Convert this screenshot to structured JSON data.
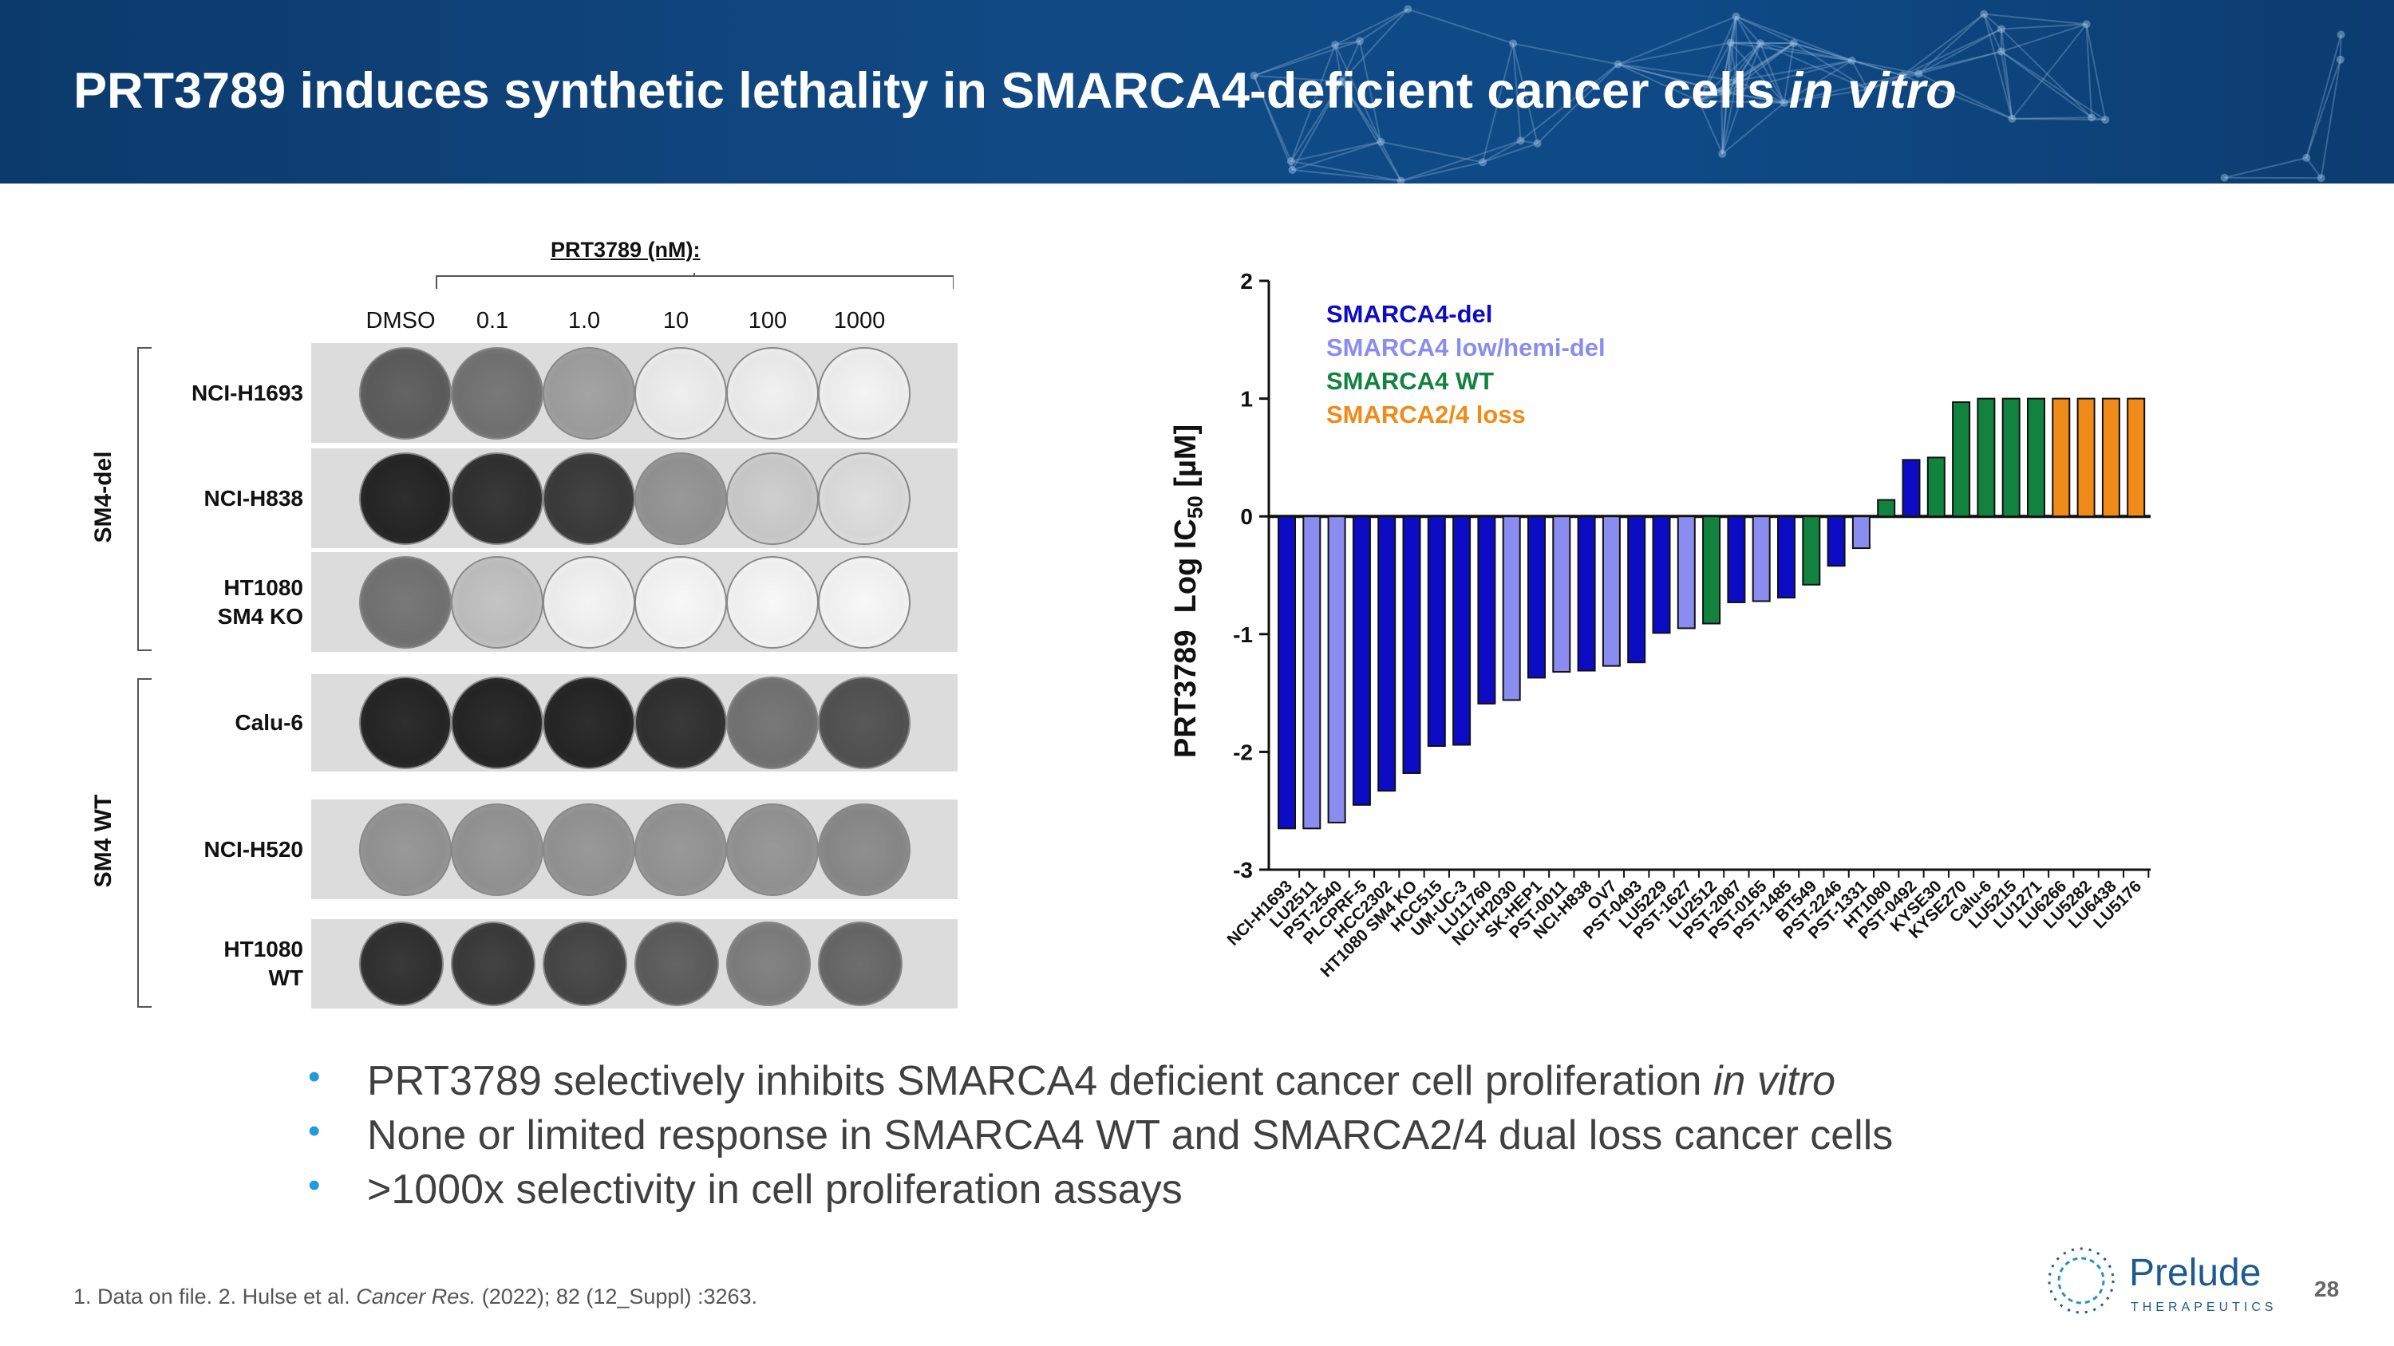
{
  "slide": {
    "title_main": "PRT3789 induces synthetic lethality in SMARCA4-deficient cancer cells ",
    "title_italic": "in vitro",
    "page_number": "28"
  },
  "colony_panel": {
    "treatment_label": "PRT3789 (nM):",
    "doses": [
      "DMSO",
      "0.1",
      "1.0",
      "10",
      "100",
      "1000"
    ],
    "groups": [
      {
        "label": "SM4-del",
        "rows": [
          {
            "line1": "NCI-H1693",
            "line2": "",
            "density": [
              0.7,
              0.6,
              0.4,
              0.05,
              0.04,
              0.03
            ]
          },
          {
            "line1": "NCI-H838",
            "line2": "",
            "density": [
              0.95,
              0.9,
              0.85,
              0.45,
              0.2,
              0.12
            ]
          },
          {
            "line1": "HT1080",
            "line2": "SM4 KO",
            "density": [
              0.6,
              0.25,
              0.03,
              0.01,
              0.01,
              0.01
            ]
          }
        ]
      },
      {
        "label": "SM4 WT",
        "rows": [
          {
            "line1": "Calu-6",
            "line2": "",
            "density": [
              0.95,
              0.95,
              0.95,
              0.9,
              0.6,
              0.75
            ]
          },
          {
            "line1": "NCI-H520",
            "line2": "",
            "density": [
              0.45,
              0.45,
              0.45,
              0.45,
              0.45,
              0.5
            ]
          },
          {
            "line1": "HT1080",
            "line2": "WT",
            "density": [
              0.9,
              0.85,
              0.8,
              0.7,
              0.55,
              0.65
            ]
          }
        ]
      }
    ]
  },
  "chart_data": {
    "type": "bar",
    "ylabel": "PRT3789  Log IC50 [µM]",
    "ylim": [
      -3,
      2
    ],
    "yticks": [
      "2",
      "1",
      "0",
      "-1",
      "-2",
      "-3"
    ],
    "legend": [
      {
        "label": "SMARCA4-del",
        "color": "#0c0cc4"
      },
      {
        "label": "SMARCA4 low/hemi-del",
        "color": "#8a8cf0"
      },
      {
        "label": "SMARCA4  WT",
        "color": "#12833f"
      },
      {
        "label": "SMARCA2/4 loss",
        "color": "#f08a18"
      }
    ],
    "categories": [
      "NCI-H1693",
      "LU2511",
      "PST-2540",
      "PLCPRF-5",
      "HCC2302",
      "HT1080 SM4 KO",
      "HCC515",
      "UM-UC-3",
      "LU11760",
      "NCI-H2030",
      "SK-HEP1",
      "PST-0011",
      "NCI-H838",
      "OV7",
      "PST-0493",
      "LU5229",
      "PST-1627",
      "LU2512",
      "PST-2087",
      "PST-0165",
      "PST-1485",
      "BT549",
      "PST-2246",
      "PST-1331",
      "HT1080",
      "PST-0492",
      "KYSE30",
      "KYSE270",
      "Calu-6",
      "LU5215",
      "LU1271",
      "LU6266",
      "LU5282",
      "LU6438",
      "LU5176"
    ],
    "values": [
      -2.65,
      -2.65,
      -2.6,
      -2.45,
      -2.33,
      -2.18,
      -1.95,
      -1.94,
      -1.59,
      -1.56,
      -1.37,
      -1.32,
      -1.31,
      -1.27,
      -1.24,
      -0.99,
      -0.95,
      -0.91,
      -0.73,
      -0.72,
      -0.69,
      -0.58,
      -0.42,
      -0.27,
      0.14,
      0.48,
      0.5,
      0.97,
      1.0,
      1.0,
      1.0,
      1.0,
      1.0,
      1.0,
      1.0
    ],
    "groups": [
      "del",
      "low",
      "low",
      "del",
      "del",
      "del",
      "del",
      "del",
      "del",
      "low",
      "del",
      "low",
      "del",
      "low",
      "del",
      "del",
      "low",
      "wt",
      "del",
      "low",
      "del",
      "wt",
      "del",
      "low",
      "wt",
      "del",
      "wt",
      "wt",
      "wt",
      "wt",
      "wt",
      "loss",
      "loss",
      "loss",
      "loss"
    ]
  },
  "bullets": [
    {
      "text": "PRT3789 selectively inhibits SMARCA4 deficient cancer cell proliferation ",
      "italic": "in vitro"
    },
    {
      "text": "None or limited response in SMARCA4 WT and SMARCA2/4 dual loss cancer cells",
      "italic": ""
    },
    {
      "text": ">1000x selectivity in cell proliferation assays",
      "italic": ""
    }
  ],
  "footnote": {
    "part1": "1. Data on file. 2. Hulse et al. ",
    "journal": "Cancer Res.",
    "part2": " (2022); 82 (12_Suppl) :3263."
  },
  "logo": {
    "word": "Prelude",
    "sub": "THERAPEUTICS"
  },
  "colors": {
    "header": "#0f4a86",
    "bullet": "#1f9bde",
    "text": "#404040"
  }
}
